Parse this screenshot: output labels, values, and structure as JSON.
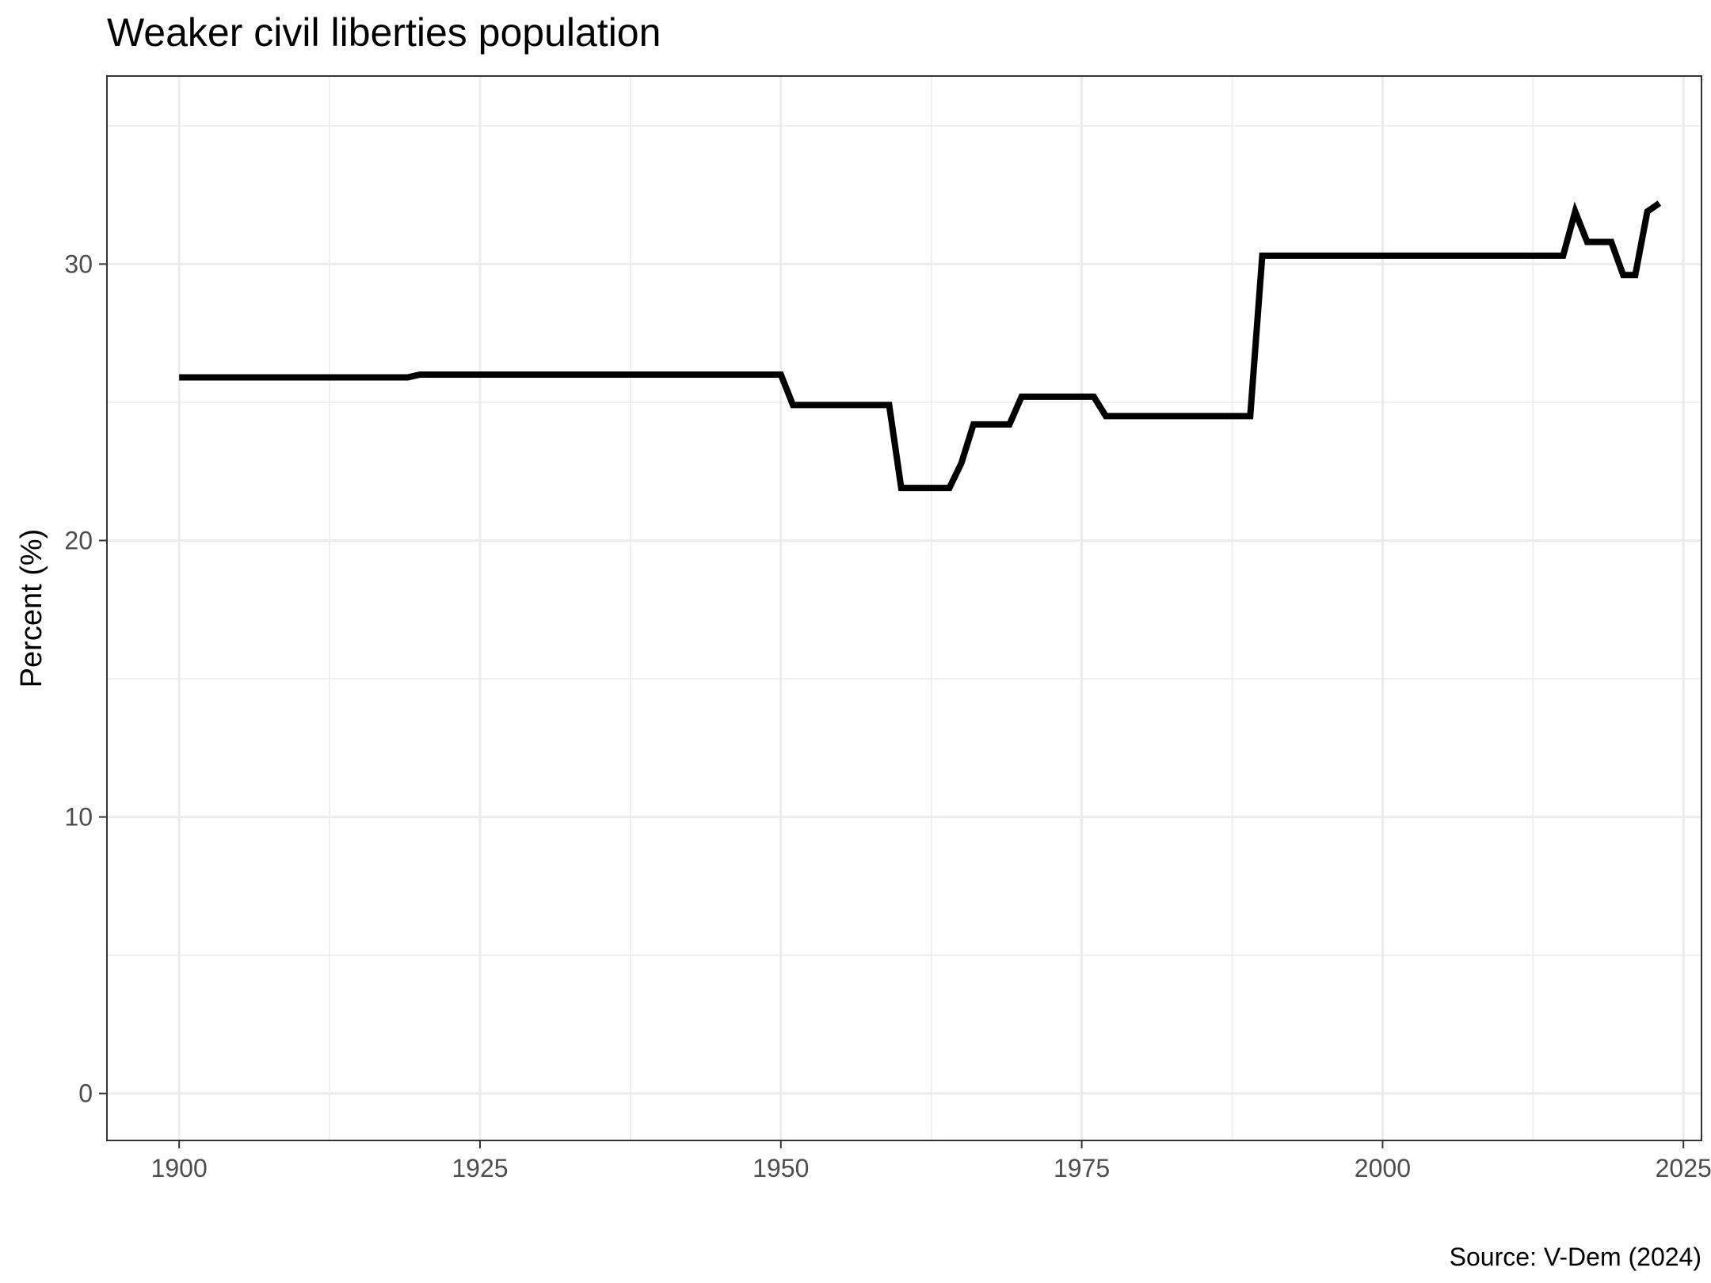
{
  "chart_data": {
    "type": "line",
    "title": "Weaker civil liberties population",
    "xlabel": "",
    "ylabel": "Percent (%)",
    "caption": "Source: V-Dem (2024)",
    "xlim": [
      1894,
      2026.5
    ],
    "ylim": [
      -1.7,
      36.8
    ],
    "x_ticks": [
      1900,
      1925,
      1950,
      1975,
      2000,
      2025
    ],
    "x_minor_ticks": [
      1912.5,
      1937.5,
      1962.5,
      1987.5,
      2012.5
    ],
    "y_ticks": [
      0,
      10,
      20,
      30
    ],
    "y_minor_ticks": [
      5,
      15,
      25,
      35
    ],
    "grid": true,
    "legend": "none",
    "colors": {
      "line": "#000000",
      "grid": "#ebebeb",
      "panel_border": "#333333",
      "background": "#ffffff"
    },
    "series": [
      {
        "x": [
          1900,
          1919,
          1920,
          1950,
          1951,
          1959,
          1960,
          1964,
          1965,
          1966,
          1969,
          1970,
          1976,
          1977,
          1989,
          1990,
          2015,
          2016,
          2017,
          2019,
          2020,
          2021,
          2022,
          2023
        ],
        "y": [
          25.9,
          25.9,
          26.0,
          26.0,
          24.9,
          24.9,
          21.9,
          21.9,
          22.8,
          24.2,
          24.2,
          25.2,
          25.2,
          24.5,
          24.5,
          30.3,
          30.3,
          31.9,
          30.8,
          30.8,
          29.6,
          29.6,
          31.9,
          32.2
        ]
      }
    ]
  }
}
